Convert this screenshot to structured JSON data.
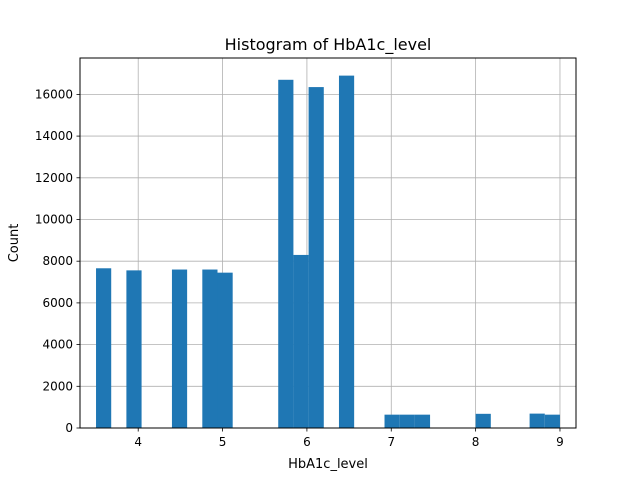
{
  "chart_data": {
    "type": "bar",
    "title": "Histogram of HbA1c_level",
    "xlabel": "HbA1c_level",
    "ylabel": "Count",
    "xlim": [
      3.31,
      9.19
    ],
    "ylim": [
      0,
      17745
    ],
    "x_ticks": [
      4,
      5,
      6,
      7,
      8,
      9
    ],
    "y_ticks": [
      0,
      2000,
      4000,
      6000,
      8000,
      10000,
      12000,
      14000,
      16000
    ],
    "grid": true,
    "bar_color": "#1f77b4",
    "bins": [
      {
        "x0": 3.5,
        "x1": 3.68,
        "count": 7660
      },
      {
        "x0": 3.86,
        "x1": 4.04,
        "count": 7560
      },
      {
        "x0": 4.4,
        "x1": 4.58,
        "count": 7600
      },
      {
        "x0": 4.76,
        "x1": 4.94,
        "count": 7600
      },
      {
        "x0": 4.94,
        "x1": 5.12,
        "count": 7450
      },
      {
        "x0": 5.66,
        "x1": 5.84,
        "count": 16700
      },
      {
        "x0": 5.84,
        "x1": 6.02,
        "count": 8300
      },
      {
        "x0": 6.02,
        "x1": 6.2,
        "count": 16350
      },
      {
        "x0": 6.38,
        "x1": 6.56,
        "count": 16900
      },
      {
        "x0": 6.92,
        "x1": 7.1,
        "count": 640
      },
      {
        "x0": 7.1,
        "x1": 7.28,
        "count": 640
      },
      {
        "x0": 7.28,
        "x1": 7.46,
        "count": 640
      },
      {
        "x0": 8.0,
        "x1": 8.18,
        "count": 680
      },
      {
        "x0": 8.64,
        "x1": 8.82,
        "count": 690
      },
      {
        "x0": 8.82,
        "x1": 9.0,
        "count": 640
      }
    ]
  }
}
